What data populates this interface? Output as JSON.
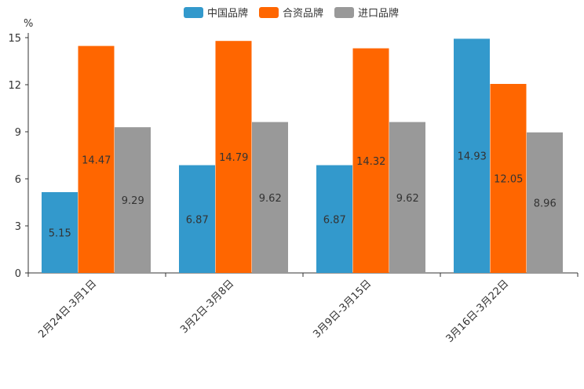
{
  "chart_data": {
    "type": "bar",
    "title": "",
    "ylabel": "%",
    "xlabel": "",
    "ylim": [
      0,
      15
    ],
    "yticks": [
      0,
      3,
      6,
      9,
      12,
      15
    ],
    "legend_position": "top-center",
    "grid": false,
    "categories": [
      "2月24日-3月1日",
      "3月2日-3月8日",
      "3月9日-3月15日",
      "3月16日-3月22日"
    ],
    "series": [
      {
        "name": "中国品牌",
        "color": "#3399cc",
        "values": [
          5.15,
          6.87,
          6.87,
          14.93
        ],
        "labels": [
          "5.15",
          "6.87",
          "6.87",
          "14.93"
        ]
      },
      {
        "name": "合资品牌",
        "color": "#ff6600",
        "values": [
          14.47,
          14.79,
          14.32,
          12.05
        ],
        "labels": [
          "14.47",
          "14.79",
          "14.32",
          "12.05"
        ]
      },
      {
        "name": "进口品牌",
        "color": "#999999",
        "values": [
          9.29,
          9.62,
          9.62,
          8.96
        ],
        "labels": [
          "9.29",
          "9.62",
          "9.62",
          "8.96"
        ]
      }
    ]
  }
}
